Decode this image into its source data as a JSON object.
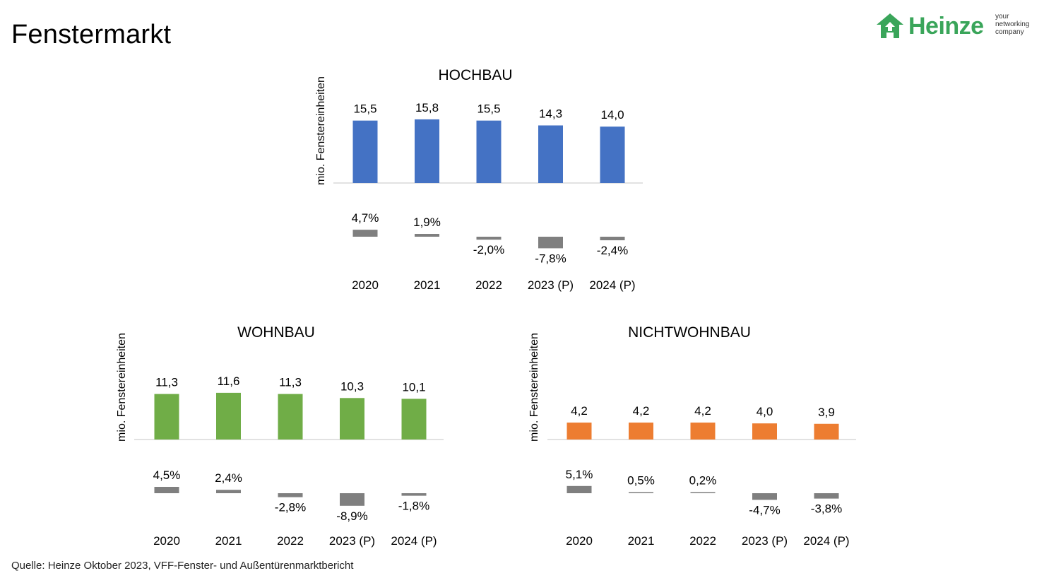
{
  "page": {
    "title": "Fenstermarkt",
    "source": "Quelle: Heinze Oktober 2023, VFF-Fenster- und Außentürenmarktbericht"
  },
  "logo": {
    "brand": "Heinze",
    "tagline_line1": "your",
    "tagline_line2": "networking",
    "tagline_line3": "company",
    "color": "#3aa55a",
    "icon": "house-arrows-icon"
  },
  "chart_data": [
    {
      "type": "bar",
      "title": "HOCHBAU",
      "ylabel": "mio. Fenstereinheiten",
      "categories": [
        "2020",
        "2021",
        "2022",
        "2023 (P)",
        "2024 (P)"
      ],
      "series": [
        {
          "values": [
            15.5,
            15.8,
            15.5,
            14.3,
            14.0
          ],
          "labels": [
            "15,5",
            "15,8",
            "15,5",
            "14,3",
            "14,0"
          ],
          "color": "#4472c4"
        }
      ],
      "change": {
        "values": [
          4.7,
          1.9,
          -2.0,
          -7.8,
          -2.4
        ],
        "labels": [
          "4,7%",
          "1,9%",
          "-2,0%",
          "-7,8%",
          "-2,4%"
        ],
        "color": "#7f7f7f"
      },
      "grid": false
    },
    {
      "type": "bar",
      "title": "WOHNBAU",
      "ylabel": "mio. Fenstereinheiten",
      "categories": [
        "2020",
        "2021",
        "2022",
        "2023 (P)",
        "2024 (P)"
      ],
      "series": [
        {
          "values": [
            11.3,
            11.6,
            11.3,
            10.3,
            10.1
          ],
          "labels": [
            "11,3",
            "11,6",
            "11,3",
            "10,3",
            "10,1"
          ],
          "color": "#70ad47"
        }
      ],
      "change": {
        "values": [
          4.5,
          2.4,
          -2.8,
          -8.9,
          -1.8
        ],
        "labels": [
          "4,5%",
          "2,4%",
          "-2,8%",
          "-8,9%",
          "-1,8%"
        ],
        "color": "#7f7f7f"
      },
      "grid": false
    },
    {
      "type": "bar",
      "title": "NICHTWOHNBAU",
      "ylabel": "mio. Fenstereinheiten",
      "categories": [
        "2020",
        "2021",
        "2022",
        "2023 (P)",
        "2024 (P)"
      ],
      "series": [
        {
          "values": [
            4.2,
            4.2,
            4.2,
            4.0,
            3.9
          ],
          "labels": [
            "4,2",
            "4,2",
            "4,2",
            "4,0",
            "3,9"
          ],
          "color": "#ed7d31"
        }
      ],
      "change": {
        "values": [
          5.1,
          0.5,
          0.2,
          -4.7,
          -3.8
        ],
        "labels": [
          "5,1%",
          "0,5%",
          "0,2%",
          "-4,7%",
          "-3,8%"
        ],
        "color": "#7f7f7f"
      },
      "grid": false
    }
  ]
}
